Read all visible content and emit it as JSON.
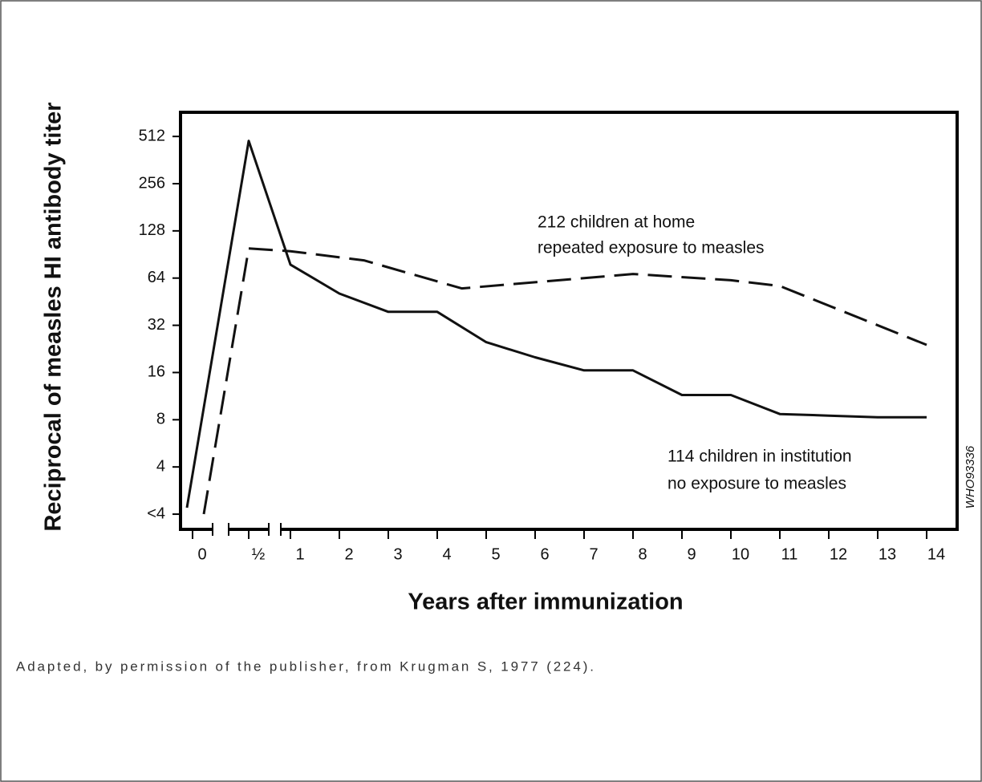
{
  "chart_data": {
    "type": "line",
    "xlabel": "Years after immunization",
    "ylabel": "Reciprocal of measles HI antibody titer",
    "annotations": [
      "212 children at home",
      "repeated exposure to measles",
      "114 children in institution",
      "no exposure to measles",
      "WHO93336"
    ],
    "caption": "Adapted, by permission of the publisher, from Krugman S, 1977 (224).",
    "log_base": 2,
    "xlim": [
      -0.2,
      14.6
    ],
    "xticks": [
      0,
      {
        "value": 0.5,
        "label": "½"
      },
      1,
      2,
      3,
      4,
      5,
      6,
      7,
      8,
      9,
      10,
      11,
      12,
      13,
      14
    ],
    "ylim": [
      1.6,
      730
    ],
    "yticks": [
      {
        "value": 2,
        "label": "<4"
      },
      4,
      8,
      16,
      32,
      64,
      128,
      256,
      512
    ],
    "series": [
      {
        "name": "114 children in institution",
        "color": "#111111",
        "dash": false,
        "x": [
          -0.05,
          0.5,
          1,
          2,
          3,
          4,
          5,
          6,
          7,
          8,
          9,
          10,
          11,
          12,
          13,
          14
        ],
        "values": [
          2.2,
          480,
          78,
          51,
          39,
          39,
          25,
          20,
          16.5,
          16.5,
          11.5,
          11.5,
          8.7,
          8.5,
          8.3,
          8.3
        ]
      },
      {
        "name": "212 children at home",
        "color": "#111111",
        "dash": true,
        "x": [
          0.1,
          0.5,
          1,
          2.5,
          4.5,
          8,
          10,
          11,
          14
        ],
        "values": [
          2,
          99,
          95,
          83,
          55,
          68,
          62,
          57,
          24
        ]
      }
    ]
  }
}
